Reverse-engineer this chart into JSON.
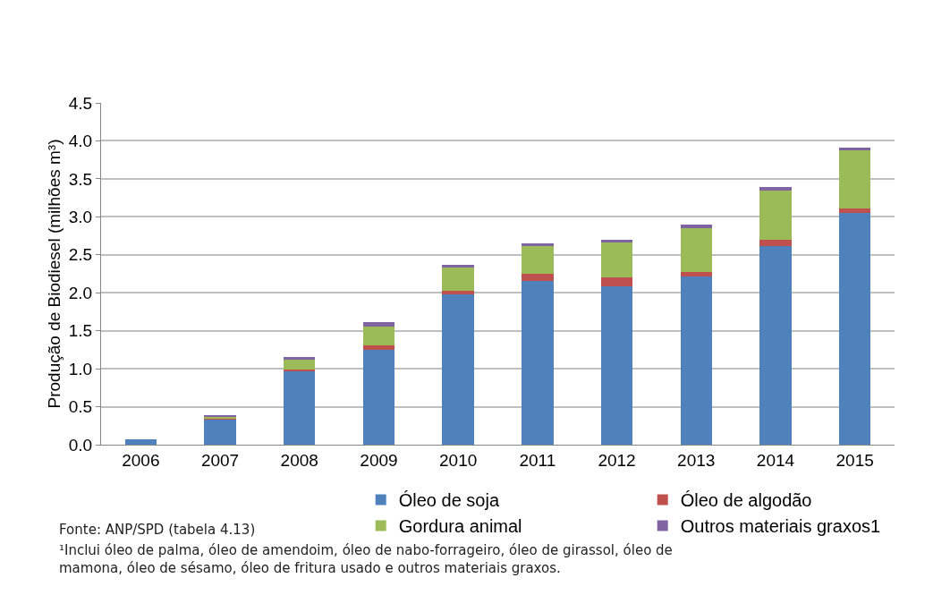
{
  "chart_data": {
    "type": "bar",
    "stacked": true,
    "ylabel": "Produção de Biodiesel (milhões m³)",
    "categories": [
      "2006",
      "2007",
      "2008",
      "2009",
      "2010",
      "2011",
      "2012",
      "2013",
      "2014",
      "2015"
    ],
    "series": [
      {
        "name": "Óleo de soja",
        "color": "#4f81bd",
        "values": [
          0.07,
          0.33,
          0.97,
          1.25,
          1.98,
          2.15,
          2.09,
          2.21,
          2.61,
          3.05
        ]
      },
      {
        "name": "Óleo de algodão",
        "color": "#c0504d",
        "values": [
          0,
          0.01,
          0.02,
          0.06,
          0.05,
          0.1,
          0.11,
          0.06,
          0.09,
          0.06
        ]
      },
      {
        "name": "Gordura animal",
        "color": "#9bbb59",
        "values": [
          0,
          0.03,
          0.13,
          0.25,
          0.3,
          0.36,
          0.46,
          0.58,
          0.65,
          0.76
        ]
      },
      {
        "name": "Outros materiais graxos1",
        "color": "#8064a2",
        "values": [
          0,
          0.02,
          0.04,
          0.05,
          0.04,
          0.04,
          0.04,
          0.05,
          0.04,
          0.04
        ]
      }
    ],
    "ylim": [
      0,
      4.5
    ],
    "yticks": [
      {
        "value": 0,
        "label": "0.0"
      },
      {
        "value": 0.5,
        "label": "0.5"
      },
      {
        "value": 1,
        "label": "1.0"
      },
      {
        "value": 1.5,
        "label": "1.5"
      },
      {
        "value": 2,
        "label": "2.0"
      },
      {
        "value": 2.5,
        "label": "2.5"
      },
      {
        "value": 3,
        "label": "3.0"
      },
      {
        "value": 3.5,
        "label": "3.5"
      },
      {
        "value": 4,
        "label": "4.0"
      },
      {
        "value": 4.5,
        "label": "4.5"
      }
    ],
    "grid": "y",
    "legend": "bottom",
    "annotations": [
      "Fonte: ANP/SPD (tabela 4.13)",
      "¹Inclui óleo de palma, óleo de amendoim, óleo de nabo-forrageiro, óleo de girassol, óleo de mamona, óleo de sésamo, óleo de fritura usado e outros materiais graxos."
    ]
  }
}
